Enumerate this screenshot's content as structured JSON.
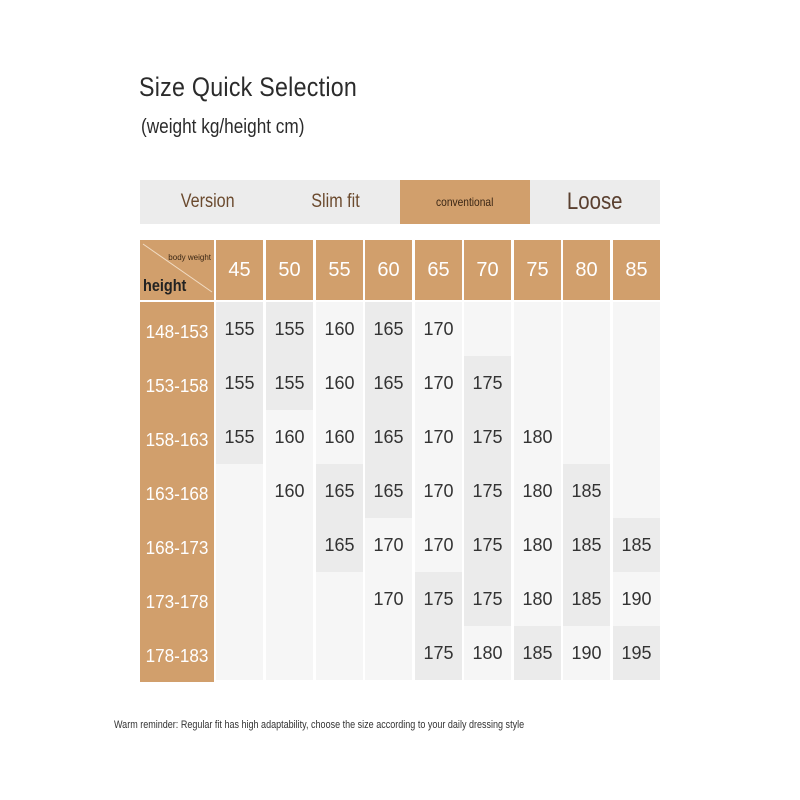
{
  "title": "Size Quick Selection",
  "subtitle": "(weight kg/height cm)",
  "version_bar": {
    "label": "Version",
    "options": [
      "Slim fit",
      "conventional",
      "Loose"
    ],
    "selected": "conventional",
    "accent": "#d19f6c"
  },
  "table": {
    "corner_top": "body weight",
    "corner_bottom": "height",
    "weights": [
      "45",
      "50",
      "55",
      "60",
      "65",
      "70",
      "75",
      "80",
      "85"
    ],
    "heights": [
      "148-153",
      "153-158",
      "158-163",
      "163-168",
      "168-173",
      "173-178",
      "178-183"
    ],
    "rows": [
      [
        "155",
        "155",
        "160",
        "165",
        "170",
        "",
        "",
        "",
        ""
      ],
      [
        "155",
        "155",
        "160",
        "165",
        "170",
        "175",
        "",
        "",
        ""
      ],
      [
        "155",
        "160",
        "160",
        "165",
        "170",
        "175",
        "180",
        "",
        ""
      ],
      [
        "",
        "160",
        "165",
        "165",
        "170",
        "175",
        "180",
        "185",
        ""
      ],
      [
        "",
        "",
        "165",
        "170",
        "170",
        "175",
        "180",
        "185",
        "185"
      ],
      [
        "",
        "",
        "",
        "170",
        "175",
        "175",
        "180",
        "185",
        "190"
      ],
      [
        "",
        "",
        "",
        "",
        "175",
        "180",
        "185",
        "190",
        "195"
      ]
    ],
    "shaded": [
      [
        1,
        1,
        0,
        1,
        0,
        0,
        0,
        0,
        0
      ],
      [
        1,
        1,
        0,
        1,
        0,
        1,
        0,
        0,
        0
      ],
      [
        1,
        0,
        0,
        1,
        0,
        1,
        0,
        0,
        0
      ],
      [
        0,
        0,
        1,
        1,
        0,
        1,
        0,
        1,
        0
      ],
      [
        0,
        0,
        1,
        0,
        0,
        1,
        0,
        1,
        1
      ],
      [
        0,
        0,
        0,
        0,
        1,
        1,
        0,
        1,
        0
      ],
      [
        0,
        0,
        0,
        0,
        1,
        0,
        1,
        0,
        1
      ]
    ]
  },
  "note": "Warm reminder: Regular fit has high adaptability, choose the size according to your daily dressing style"
}
